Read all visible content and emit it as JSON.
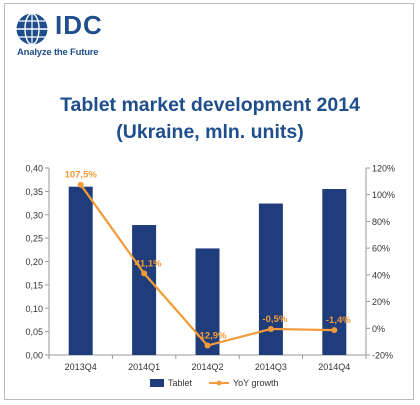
{
  "brand": {
    "logo_text": "IDC",
    "tagline": "Analyze the Future",
    "logo_color": "#1f4e8c"
  },
  "chart_data": {
    "type": "bar",
    "title_line1": "Tablet market development 2014",
    "title_line2": "(Ukraine, mln. units)",
    "categories": [
      "2013Q4",
      "2014Q1",
      "2014Q2",
      "2014Q3",
      "2014Q4"
    ],
    "left_axis": {
      "min": 0,
      "max": 0.4,
      "step": 0.05,
      "ticks": [
        "0,00",
        "0,05",
        "0,10",
        "0,15",
        "0,20",
        "0,25",
        "0,30",
        "0,35",
        "0,40"
      ]
    },
    "right_axis": {
      "min": -20,
      "max": 120,
      "step": 20,
      "ticks": [
        "-20%",
        "0%",
        "20%",
        "40%",
        "60%",
        "80%",
        "100%",
        "120%"
      ]
    },
    "series": [
      {
        "name": "Tablet",
        "kind": "bar",
        "axis": "left",
        "color": "#1f3d7a",
        "values": [
          0.36,
          0.278,
          0.228,
          0.324,
          0.355
        ]
      },
      {
        "name": "YoY growth",
        "kind": "line",
        "axis": "right",
        "color": "#f29b38",
        "values": [
          107.5,
          41.1,
          -12.9,
          -0.5,
          -1.4
        ],
        "labels": [
          "107,5%",
          "41,1%",
          "-12,9%",
          "-0,5%",
          "-1,4%"
        ]
      }
    ],
    "grid": false,
    "legend_position": "bottom"
  }
}
